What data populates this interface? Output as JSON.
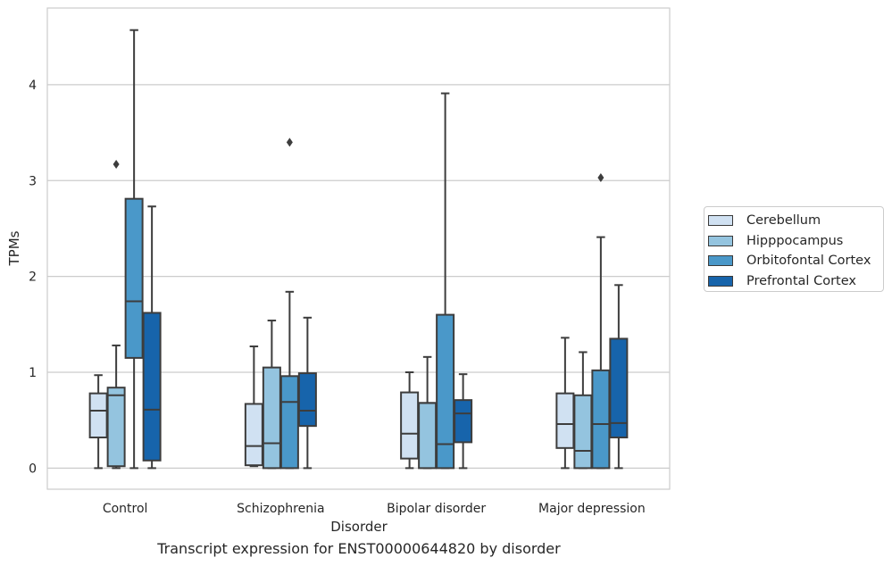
{
  "chart_data": {
    "type": "box",
    "xlabel": "Disorder",
    "ylabel": "TPMs",
    "ylim": [
      -0.22,
      4.8
    ],
    "yticks": [
      0,
      1,
      2,
      3,
      4
    ],
    "grid": "horizontal",
    "legend_position": "right",
    "categories": [
      "Control",
      "Schizophrenia",
      "Bipolar disorder",
      "Major depression"
    ],
    "series": [
      {
        "name": "Cerebellum",
        "color": "#d0e1f2",
        "boxes": [
          {
            "whislo": 0.0,
            "q1": 0.32,
            "med": 0.6,
            "q3": 0.78,
            "whishi": 0.97,
            "fliers": []
          },
          {
            "whislo": 0.02,
            "q1": 0.03,
            "med": 0.23,
            "q3": 0.67,
            "whishi": 1.27,
            "fliers": []
          },
          {
            "whislo": 0.0,
            "q1": 0.1,
            "med": 0.36,
            "q3": 0.79,
            "whishi": 1.0,
            "fliers": []
          },
          {
            "whislo": 0.0,
            "q1": 0.21,
            "med": 0.46,
            "q3": 0.78,
            "whishi": 1.36,
            "fliers": []
          }
        ]
      },
      {
        "name": "Hipppocampus",
        "color": "#94c4df",
        "boxes": [
          {
            "whislo": 0.0,
            "q1": 0.02,
            "med": 0.76,
            "q3": 0.84,
            "whishi": 1.28,
            "fliers": [
              3.17
            ]
          },
          {
            "whislo": 0.0,
            "q1": 0.0,
            "med": 0.26,
            "q3": 1.05,
            "whishi": 1.54,
            "fliers": []
          },
          {
            "whislo": 0.0,
            "q1": 0.0,
            "med": 0.68,
            "q3": 0.68,
            "whishi": 1.16,
            "fliers": []
          },
          {
            "whislo": 0.0,
            "q1": 0.0,
            "med": 0.18,
            "q3": 0.76,
            "whishi": 1.21,
            "fliers": []
          }
        ]
      },
      {
        "name": "Orbitofontal Cortex",
        "color": "#4a98c9",
        "boxes": [
          {
            "whislo": 0.0,
            "q1": 1.15,
            "med": 1.74,
            "q3": 2.81,
            "whishi": 4.57,
            "fliers": []
          },
          {
            "whislo": 0.0,
            "q1": 0.0,
            "med": 0.69,
            "q3": 0.96,
            "whishi": 1.84,
            "fliers": [
              3.4
            ]
          },
          {
            "whislo": 0.0,
            "q1": 0.0,
            "med": 0.25,
            "q3": 1.6,
            "whishi": 3.91,
            "fliers": []
          },
          {
            "whislo": 0.0,
            "q1": 0.0,
            "med": 0.46,
            "q3": 1.02,
            "whishi": 2.41,
            "fliers": [
              3.03
            ]
          }
        ]
      },
      {
        "name": "Prefrontal Cortex",
        "color": "#1764ab",
        "boxes": [
          {
            "whislo": 0.0,
            "q1": 0.08,
            "med": 0.61,
            "q3": 1.62,
            "whishi": 2.73,
            "fliers": []
          },
          {
            "whislo": 0.0,
            "q1": 0.44,
            "med": 0.6,
            "q3": 0.99,
            "whishi": 1.57,
            "fliers": []
          },
          {
            "whislo": 0.0,
            "q1": 0.27,
            "med": 0.57,
            "q3": 0.71,
            "whishi": 0.98,
            "fliers": []
          },
          {
            "whislo": 0.0,
            "q1": 0.32,
            "med": 0.47,
            "q3": 1.35,
            "whishi": 1.91,
            "fliers": []
          }
        ]
      }
    ],
    "caption": "Transcript expression for ENST00000644820 by disorder"
  }
}
